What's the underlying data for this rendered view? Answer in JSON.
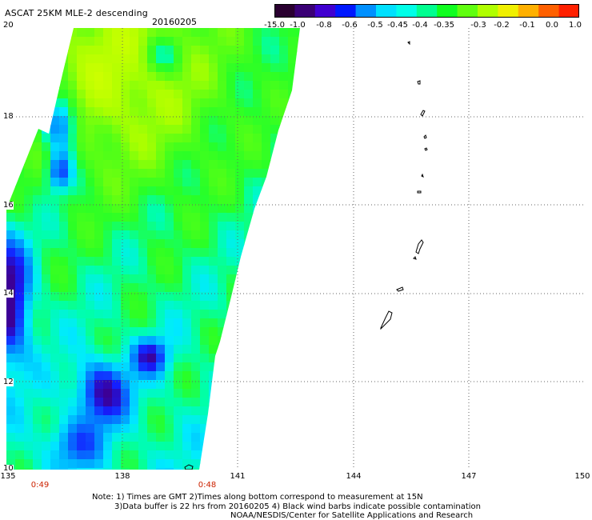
{
  "header": {
    "title": "ASCAT 25KM MLE-2 descending",
    "date": "20160205"
  },
  "colorbar": {
    "colors": [
      "#2a0030",
      "#3a0075",
      "#4000d0",
      "#0018ff",
      "#0090ff",
      "#00e0ff",
      "#00ffe8",
      "#00ff90",
      "#10ff20",
      "#60ff10",
      "#b0ff00",
      "#f0f000",
      "#ffb000",
      "#ff6000",
      "#ff2000"
    ],
    "labels": [
      "-15.0",
      "-1.0",
      "-0.8",
      "-0.6",
      "-0.5",
      "-0.45",
      "-0.4",
      "-0.35",
      "-0.3",
      "-0.2",
      "-0.1",
      "0.0",
      "1.0"
    ]
  },
  "axes": {
    "lon_labels": [
      "135",
      "138",
      "141",
      "144",
      "147",
      "150"
    ],
    "lat_labels": [
      "20",
      "18",
      "16",
      "14",
      "12",
      "10"
    ]
  },
  "times": {
    "left": "0:49",
    "right": "0:48"
  },
  "notes": {
    "line1": "Note: 1) Times are GMT 2)Times along bottom correspond to measurement at 15N",
    "line2": "3)Data buffer is 22 hrs from 20160205 4) Black wind barbs indicate possible contamination",
    "line3": "NOAA/NESDIS/Center for Satellite Applications and Research"
  }
}
